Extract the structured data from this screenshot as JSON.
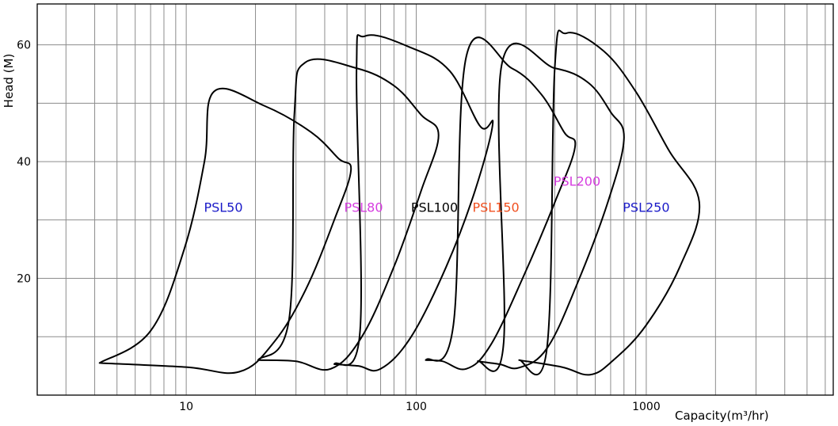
{
  "chart_data": {
    "type": "line",
    "title": "",
    "xlabel": "Capacity(m³/hr)",
    "ylabel": "Head (M)",
    "x_scale": "log",
    "xlim": [
      2.25,
      6500
    ],
    "ylim": [
      0,
      67
    ],
    "x_ticks": [
      10,
      100,
      1000
    ],
    "y_ticks": [
      20,
      40,
      60
    ],
    "grid": true,
    "legend": "none",
    "series": [
      {
        "name": "PSL50",
        "color": "#1a1ac8",
        "label_at": [
          14.5,
          32
        ],
        "boundary": [
          [
            4.2,
            5.5
          ],
          [
            7.0,
            11.0
          ],
          [
            9.8,
            25.0
          ],
          [
            12.0,
            40.0
          ],
          [
            13.2,
            52.0
          ],
          [
            22.0,
            49.5
          ],
          [
            35.0,
            45.0
          ],
          [
            46.0,
            40.5
          ],
          [
            52.0,
            38.5
          ],
          [
            44.0,
            30.0
          ],
          [
            33.0,
            18.0
          ],
          [
            24.0,
            9.0
          ],
          [
            17.0,
            4.0
          ],
          [
            10.0,
            4.8
          ],
          [
            4.2,
            5.5
          ]
        ]
      },
      {
        "name": "PSL80",
        "color": "#d63ce0",
        "label_at": [
          59,
          32
        ],
        "boundary": [
          [
            20.5,
            6.0
          ],
          [
            28.0,
            13.0
          ],
          [
            29.5,
            48.0
          ],
          [
            33.0,
            57.0
          ],
          [
            55.0,
            56.0
          ],
          [
            80.0,
            53.0
          ],
          [
            105.0,
            48.0
          ],
          [
            125.0,
            44.5
          ],
          [
            105.0,
            35.0
          ],
          [
            80.0,
            22.0
          ],
          [
            58.0,
            10.0
          ],
          [
            42.5,
            4.5
          ],
          [
            30.0,
            5.8
          ],
          [
            20.5,
            6.0
          ]
        ]
      },
      {
        "name": "PSL100",
        "color": "#000000",
        "label_at": [
          120,
          32
        ],
        "boundary": [
          [
            44.0,
            5.3
          ],
          [
            57.0,
            11.0
          ],
          [
            55.0,
            55.5
          ],
          [
            60.0,
            61.5
          ],
          [
            95.0,
            59.5
          ],
          [
            140.0,
            55.5
          ],
          [
            190.0,
            46.0
          ],
          [
            215.0,
            46.5
          ],
          [
            180.0,
            35.0
          ],
          [
            135.0,
            22.0
          ],
          [
            95.0,
            10.0
          ],
          [
            70.0,
            4.5
          ],
          [
            56.0,
            5.0
          ],
          [
            44.0,
            5.3
          ]
        ]
      },
      {
        "name": "PSL150",
        "color": "#f05020",
        "label_at": [
          222,
          32
        ],
        "boundary": [
          [
            110.0,
            6.0
          ],
          [
            145.0,
            12.0
          ],
          [
            165.0,
            58.0
          ],
          [
            260.0,
            56.0
          ],
          [
            350.0,
            51.5
          ],
          [
            440.0,
            45.0
          ],
          [
            490.0,
            42.5
          ],
          [
            400.0,
            33.0
          ],
          [
            290.0,
            20.0
          ],
          [
            210.0,
            8.5
          ],
          [
            165.0,
            4.5
          ],
          [
            130.0,
            5.8
          ],
          [
            110.0,
            6.0
          ]
        ]
      },
      {
        "name": "PSL200",
        "color": "#d63ce0",
        "label_at": [
          500,
          36.5
        ],
        "boundary": [
          [
            185.0,
            5.8
          ],
          [
            240.0,
            9.0
          ],
          [
            235.0,
            56.5
          ],
          [
            400.0,
            56.0
          ],
          [
            560.0,
            53.5
          ],
          [
            700.0,
            48.5
          ],
          [
            800.0,
            44.0
          ],
          [
            680.0,
            33.0
          ],
          [
            500.0,
            19.0
          ],
          [
            370.0,
            8.0
          ],
          [
            280.0,
            4.7
          ],
          [
            230.0,
            5.3
          ],
          [
            185.0,
            5.8
          ]
        ]
      },
      {
        "name": "PSL250",
        "color": "#1a1ac8",
        "label_at": [
          1000,
          32
        ],
        "boundary": [
          [
            280.0,
            6.0
          ],
          [
            370.0,
            8.0
          ],
          [
            400.0,
            56.0
          ],
          [
            450.0,
            62.0
          ],
          [
            650.0,
            59.0
          ],
          [
            900.0,
            52.0
          ],
          [
            1250.0,
            42.0
          ],
          [
            1700.0,
            33.0
          ],
          [
            1400.0,
            22.0
          ],
          [
            1000.0,
            12.0
          ],
          [
            720.0,
            6.0
          ],
          [
            570.0,
            3.5
          ],
          [
            430.0,
            4.8
          ],
          [
            280.0,
            6.0
          ]
        ]
      }
    ]
  }
}
